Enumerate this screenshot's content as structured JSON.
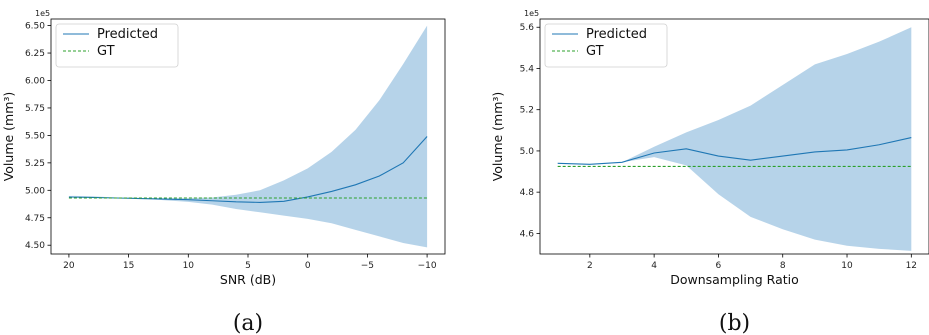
{
  "chart_data": [
    {
      "type": "line",
      "panel_label": "(a)",
      "xlabel": "SNR (dB)",
      "ylabel": "Volume (mm³)",
      "y_offset_text": "1e5",
      "x_inverted": true,
      "xlim": [
        21.5,
        -11.5
      ],
      "ylim": [
        4.42,
        6.56
      ],
      "xticks": [
        20,
        15,
        10,
        5,
        0,
        -5,
        -10
      ],
      "xtick_labels": [
        "20",
        "15",
        "10",
        "5",
        "0",
        "−5",
        "−10"
      ],
      "yticks": [
        4.5,
        4.75,
        5.0,
        5.25,
        5.5,
        5.75,
        6.0,
        6.25,
        6.5
      ],
      "ytick_labels": [
        "4.50",
        "4.75",
        "5.00",
        "5.25",
        "5.50",
        "5.75",
        "6.00",
        "6.25",
        "6.50"
      ],
      "legend": {
        "placement": "top-left",
        "entries": [
          "Predicted",
          "GT"
        ]
      },
      "x": [
        20,
        18,
        16,
        14,
        12,
        10,
        8,
        6,
        4,
        2,
        0,
        -2,
        -4,
        -6,
        -8,
        -10
      ],
      "series": [
        {
          "name": "Predicted",
          "style": "solid",
          "color": "#1f77b4",
          "values": [
            4.94,
            4.935,
            4.93,
            4.925,
            4.92,
            4.915,
            4.905,
            4.895,
            4.89,
            4.9,
            4.94,
            4.99,
            5.05,
            5.13,
            5.25,
            5.49
          ]
        },
        {
          "name": "GT",
          "style": "dashed",
          "color": "#2ca02c",
          "values": [
            4.93,
            4.93,
            4.93,
            4.93,
            4.93,
            4.93,
            4.93,
            4.93,
            4.93,
            4.93,
            4.93,
            4.93,
            4.93,
            4.93,
            4.93,
            4.93
          ]
        }
      ],
      "band": {
        "color": "#9ec4e2",
        "lower": [
          4.95,
          4.94,
          4.935,
          4.925,
          4.91,
          4.895,
          4.87,
          4.83,
          4.8,
          4.77,
          4.74,
          4.7,
          4.64,
          4.58,
          4.52,
          4.48
        ],
        "upper": [
          4.95,
          4.945,
          4.935,
          4.93,
          4.925,
          4.93,
          4.935,
          4.96,
          5.0,
          5.09,
          5.2,
          5.35,
          5.55,
          5.82,
          6.15,
          6.5
        ]
      }
    },
    {
      "type": "line",
      "panel_label": "(b)",
      "xlabel": "Downsampling Ratio",
      "ylabel": "Volume (mm³)",
      "y_offset_text": "1e5",
      "x_inverted": false,
      "xlim": [
        0.45,
        12.55
      ],
      "ylim": [
        4.5,
        5.64
      ],
      "xticks": [
        2,
        4,
        6,
        8,
        10,
        12
      ],
      "xtick_labels": [
        "2",
        "4",
        "6",
        "8",
        "10",
        "12"
      ],
      "yticks": [
        4.6,
        4.8,
        5.0,
        5.2,
        5.4,
        5.6
      ],
      "ytick_labels": [
        "4.6",
        "4.8",
        "5.0",
        "5.2",
        "5.4",
        "5.6"
      ],
      "legend": {
        "placement": "top-left",
        "entries": [
          "Predicted",
          "GT"
        ]
      },
      "x": [
        1,
        2,
        3,
        4,
        5,
        6,
        7,
        8,
        9,
        10,
        11,
        12
      ],
      "series": [
        {
          "name": "Predicted",
          "style": "solid",
          "color": "#1f77b4",
          "values": [
            4.94,
            4.935,
            4.945,
            4.99,
            5.01,
            4.975,
            4.955,
            4.975,
            4.995,
            5.005,
            5.03,
            5.065
          ]
        },
        {
          "name": "GT",
          "style": "dashed",
          "color": "#2ca02c",
          "values": [
            4.925,
            4.925,
            4.925,
            4.925,
            4.925,
            4.925,
            4.925,
            4.925,
            4.925,
            4.925,
            4.925,
            4.925
          ]
        }
      ],
      "band": {
        "color": "#9ec4e2",
        "lower": [
          4.94,
          4.935,
          4.945,
          4.97,
          4.93,
          4.79,
          4.68,
          4.62,
          4.57,
          4.54,
          4.525,
          4.515
        ],
        "upper": [
          4.94,
          4.935,
          4.945,
          5.02,
          5.09,
          5.15,
          5.22,
          5.32,
          5.42,
          5.47,
          5.53,
          5.6
        ]
      }
    }
  ]
}
